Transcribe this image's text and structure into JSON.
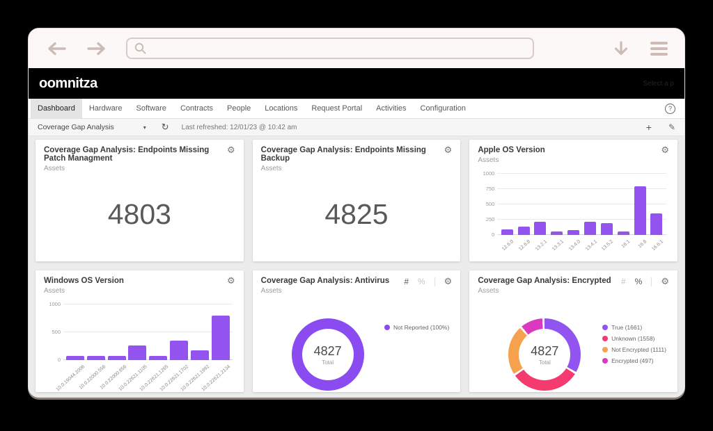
{
  "browser": {
    "url_value": "",
    "url_placeholder": ""
  },
  "app": {
    "logo": "oomnitza",
    "header_faint_text": "Select a p",
    "nav": {
      "tabs": [
        {
          "label": "Dashboard"
        },
        {
          "label": "Hardware"
        },
        {
          "label": "Software"
        },
        {
          "label": "Contracts"
        },
        {
          "label": "People"
        },
        {
          "label": "Locations"
        },
        {
          "label": "Request Portal"
        },
        {
          "label": "Activities"
        },
        {
          "label": "Configuration"
        }
      ],
      "help_label": "?"
    },
    "toolbar": {
      "dashboard_select": "Coverage Gap Analysis",
      "caret": "▾",
      "refresh_icon": "↻",
      "last_refreshed": "Last refreshed: 12/01/23 @ 10:42 am",
      "add_label": "+",
      "edit_label": "✎"
    }
  },
  "cards": {
    "patch": {
      "title": "Coverage Gap Analysis: Endpoints Missing Patch Managment",
      "subtitle": "Assets",
      "value": "4803",
      "gear": "⚙"
    },
    "backup": {
      "title": "Coverage Gap Analysis: Endpoints Missing Backup",
      "subtitle": "Assets",
      "value": "4825",
      "gear": "⚙"
    },
    "apple": {
      "title": "Apple OS Version",
      "subtitle": "Assets",
      "gear": "⚙"
    },
    "windows": {
      "title": "Windows OS Version",
      "subtitle": "Assets",
      "gear": "⚙"
    },
    "antivirus": {
      "title": "Coverage Gap Analysis: Antivirus",
      "subtitle": "Assets",
      "gear": "⚙",
      "count_toggle": "#",
      "percent_toggle": "%"
    },
    "encrypted": {
      "title": "Coverage Gap Analysis: Encrypted",
      "subtitle": "Assets",
      "gear": "⚙",
      "count_toggle": "#",
      "percent_toggle": "%"
    }
  },
  "chart_data": [
    {
      "type": "bar",
      "title": "Apple OS Version",
      "ylabel": "Assets",
      "categories": [
        "12.6.0",
        "12.6.8",
        "13.2.1",
        "13.3.1",
        "13.4.0",
        "13.4.1",
        "13.5.2",
        "16.1",
        "16.6",
        "16.6.1"
      ],
      "values": [
        90,
        140,
        220,
        60,
        85,
        215,
        190,
        60,
        800,
        350
      ],
      "ylim": [
        0,
        1000
      ],
      "yticks": [
        1000,
        750,
        500,
        250,
        0
      ],
      "bar_color": "#9353ef",
      "grid": true
    },
    {
      "type": "bar",
      "title": "Windows OS Version",
      "ylabel": "Assets",
      "categories": [
        "10.0.19044.2006",
        "10.0.22000.556",
        "10.0.22000.856",
        "10.0.22621.1105",
        "10.0.22621.1265",
        "10.0.22621.1702",
        "10.0.22621.1992",
        "10.0.22621.2134"
      ],
      "values": [
        80,
        80,
        80,
        260,
        80,
        350,
        170,
        800
      ],
      "ylim": [
        0,
        1000
      ],
      "yticks": [
        1000,
        500,
        0
      ],
      "bar_color": "#9353ef",
      "grid": true
    },
    {
      "type": "pie",
      "title": "Coverage Gap Analysis: Antivirus",
      "center_value": "4827",
      "center_label": "Total",
      "legend_position": "right",
      "segments": [
        {
          "label": "Not Reported (100%)",
          "value": 4827,
          "pct": 100,
          "color": "#8a4bf0"
        }
      ]
    },
    {
      "type": "pie",
      "title": "Coverage Gap Analysis: Encrypted",
      "center_value": "4827",
      "center_label": "Total",
      "legend_position": "right",
      "segments": [
        {
          "label": "True (1661)",
          "value": 1661,
          "pct": 34.4,
          "color": "#9254f1"
        },
        {
          "label": "Unknown (1558)",
          "value": 1558,
          "pct": 32.3,
          "color": "#f43a6f"
        },
        {
          "label": "Not Encrypted (1111)",
          "value": 1111,
          "pct": 23.0,
          "color": "#f5a14d"
        },
        {
          "label": "Encrypted (497)",
          "value": 497,
          "pct": 10.3,
          "color": "#d93ac0"
        }
      ]
    }
  ]
}
